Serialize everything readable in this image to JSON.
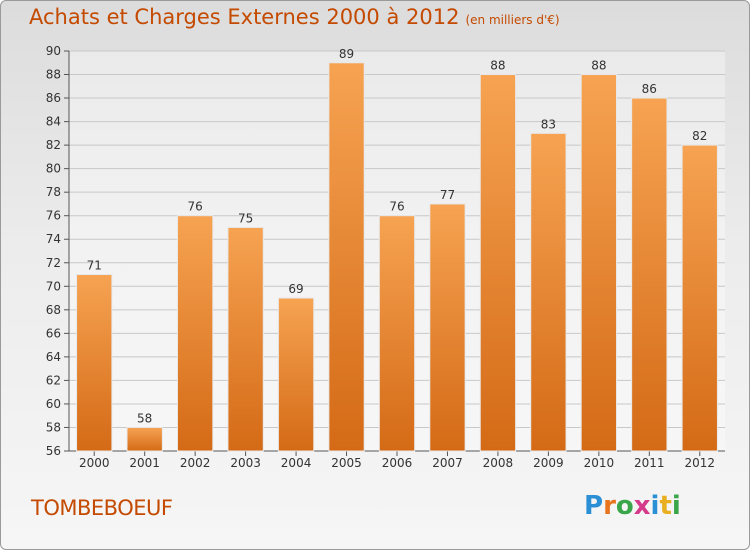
{
  "title": "Achats et Charges Externes 2000 à 2012",
  "subtitle": "(en milliers d'€)",
  "commune": "TOMBEBOEUF",
  "logo": {
    "letters": [
      "P",
      "r",
      "o",
      "x",
      "i",
      "t",
      "i"
    ],
    "colors": [
      "#2b8fd6",
      "#e8741e",
      "#3aa64a",
      "#d63a8a",
      "#2b8fd6",
      "#e8b01e",
      "#3aa64a"
    ]
  },
  "colors": {
    "bar_top": "#f6a352",
    "bar_bottom": "#d46a16",
    "title": "#c44a00"
  },
  "chart_data": {
    "type": "bar",
    "categories": [
      "2000",
      "2001",
      "2002",
      "2003",
      "2004",
      "2005",
      "2006",
      "2007",
      "2008",
      "2009",
      "2010",
      "2011",
      "2012"
    ],
    "values": [
      71,
      58,
      76,
      75,
      69,
      89,
      76,
      77,
      88,
      83,
      88,
      86,
      82
    ],
    "yticks": [
      56,
      58,
      60,
      62,
      64,
      66,
      68,
      70,
      72,
      74,
      76,
      78,
      80,
      82,
      84,
      86,
      88,
      90
    ],
    "ylim": [
      56,
      90
    ],
    "grid": true
  }
}
